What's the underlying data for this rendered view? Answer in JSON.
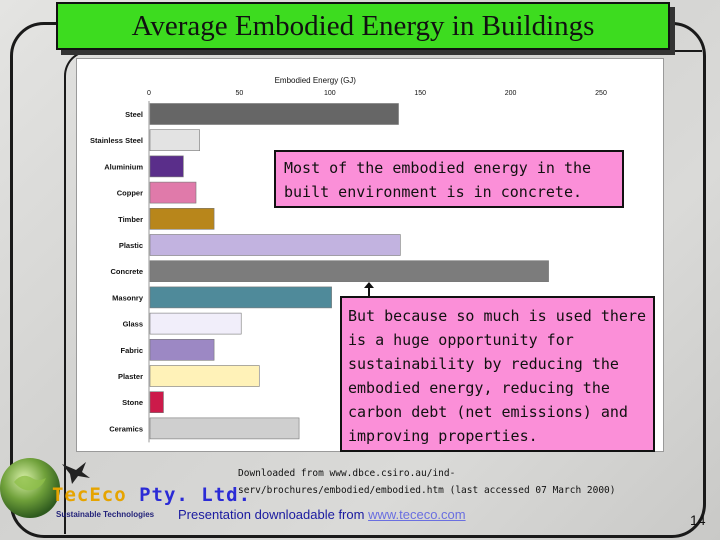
{
  "title": "Average Embodied Energy in Buildings",
  "callouts": {
    "top": "Most of the embodied energy in the built environment is in concrete.",
    "bottom": "But because so much is used there is a huge opportunity for sustainability by reducing the embodied energy, reducing the carbon debt (net emissions) and improving properties."
  },
  "source": {
    "line1": "Downloaded from www.dbce.csiro.au/ind-",
    "line2": "serv/brochures/embodied/embodied.htm (last accessed 07 March 2000)"
  },
  "download": {
    "text": "Presentation downloadable from ",
    "link": "www.tececo.com"
  },
  "page_number": "14",
  "logo": {
    "brand_part1": "TecEco",
    "brand_part2": " Pty. Ltd.",
    "tagline": "Sustainable Technologies"
  },
  "chart_data": {
    "type": "bar",
    "orientation": "horizontal",
    "xlabel": "Embodied Energy (GJ)",
    "xlim": [
      0,
      250
    ],
    "xticks": [
      0,
      50,
      100,
      150,
      200,
      250
    ],
    "grid": false,
    "categories": [
      "Steel",
      "Stainless Steel",
      "Aluminium",
      "Copper",
      "Timber",
      "Plastic",
      "Concrete",
      "Masonry",
      "Glass",
      "Fabric",
      "Plaster",
      "Stone",
      "Ceramics"
    ],
    "values": [
      138,
      28,
      19,
      26,
      36,
      139,
      221,
      101,
      51,
      36,
      61,
      8,
      83
    ],
    "colors": [
      "#666666",
      "#e3e3e3",
      "#5a2e8a",
      "#e07aaa",
      "#b8861b",
      "#c2b3e0",
      "#7c7c7c",
      "#4f8a9a",
      "#f1eefa",
      "#9c88c4",
      "#fff2b8",
      "#cc1a4a",
      "#cfcfcf"
    ]
  }
}
